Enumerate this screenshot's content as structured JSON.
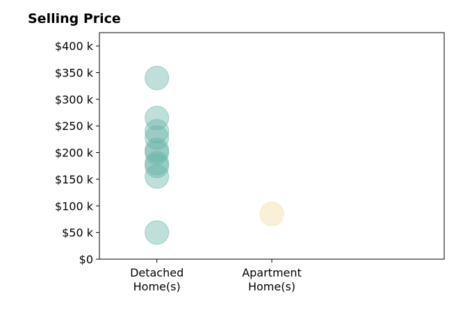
{
  "chart_data": {
    "type": "scatter",
    "title": "Selling Price",
    "xlabel": "",
    "ylabel": "",
    "categories": [
      "Detached\nHome(s)",
      "Apartment\nHome(s)"
    ],
    "xlim": [
      -0.5,
      2.5
    ],
    "ylim": [
      0,
      425000
    ],
    "yticks": [
      0,
      50000,
      100000,
      150000,
      200000,
      250000,
      300000,
      350000,
      400000
    ],
    "ytick_labels": [
      "$0",
      "$50 k",
      "$100 k",
      "$150 k",
      "$200 k",
      "$250 k",
      "$300 k",
      "$350 k",
      "$400 k"
    ],
    "grid": false,
    "legend": "none",
    "series": [
      {
        "category": 0,
        "color": "#66b2a8",
        "values": [
          340000,
          265000,
          240000,
          228000,
          205000,
          200000,
          180000,
          175000,
          155000,
          50000
        ]
      },
      {
        "category": 1,
        "color": "#f3d9a0",
        "values": [
          85000
        ]
      }
    ]
  }
}
